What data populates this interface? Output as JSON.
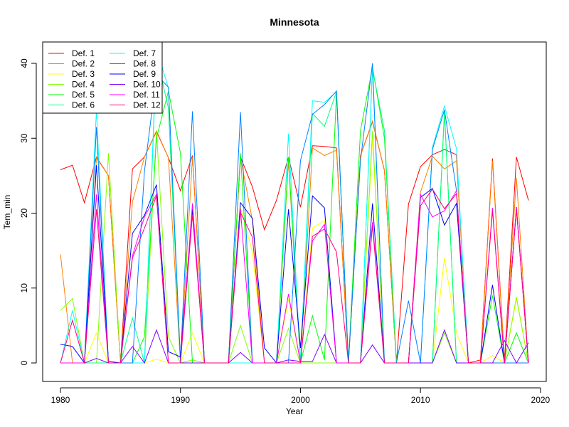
{
  "chart_data": {
    "type": "line",
    "title": "Minnesota",
    "xlabel": "Year",
    "ylabel": "Tem_min",
    "xlim": [
      1980,
      2020
    ],
    "ylim": [
      0,
      42
    ],
    "xticks": [
      1980,
      1990,
      2000,
      2010,
      2020
    ],
    "yticks": [
      0,
      10,
      20,
      30,
      40
    ],
    "legend_position": "top-left",
    "x": [
      1980,
      1981,
      1982,
      1983,
      1984,
      1985,
      1986,
      1987,
      1988,
      1989,
      1990,
      1991,
      1992,
      1993,
      1994,
      1995,
      1996,
      1997,
      1998,
      1999,
      2000,
      2001,
      2002,
      2003,
      2004,
      2005,
      2006,
      2007,
      2008,
      2009,
      2010,
      2011,
      2012,
      2013,
      2014,
      2015,
      2016,
      2017,
      2018,
      2019
    ],
    "series": [
      {
        "name": "Def. 1",
        "color": "#FF0000",
        "values": [
          25.8,
          26.4,
          21.4,
          27.5,
          25,
          0,
          25.9,
          27.5,
          30.9,
          27.4,
          23,
          27.7,
          0,
          0,
          0,
          27.5,
          23.5,
          17.8,
          21.7,
          27.5,
          20.8,
          29,
          28.9,
          28.7,
          0,
          27.7,
          32.2,
          25.7,
          0,
          21.2,
          26.2,
          27.8,
          28.5,
          27.8,
          0,
          0.4,
          27.3,
          0.3,
          27.5,
          21.7
        ]
      },
      {
        "name": "Def. 2",
        "color": "#FF8000",
        "values": [
          14.5,
          0,
          0,
          27.4,
          25,
          0,
          21.5,
          27.5,
          31,
          27.4,
          0,
          27.5,
          0,
          0,
          0,
          27.5,
          19,
          0,
          0,
          26.9,
          0,
          28.7,
          27.7,
          28.4,
          0,
          27.7,
          32.3,
          25.7,
          0,
          0,
          22.8,
          27.6,
          25.9,
          27,
          0,
          0,
          27,
          0,
          24.7,
          0
        ]
      },
      {
        "name": "Def. 3",
        "color": "#FFFF00",
        "values": [
          0,
          0,
          0,
          4,
          0,
          0,
          0,
          0,
          0.5,
          0,
          0,
          4,
          0,
          0,
          0,
          20.8,
          14.8,
          0,
          0,
          8.6,
          0,
          18,
          19,
          0,
          0,
          0,
          30,
          0,
          0,
          0,
          0,
          0,
          14,
          4,
          0,
          0,
          1,
          0,
          8.6,
          0
        ]
      },
      {
        "name": "Def. 4",
        "color": "#80FF00",
        "values": [
          7,
          8.6,
          0,
          0,
          28,
          0,
          0,
          0,
          31,
          3.5,
          0,
          0.4,
          0,
          0,
          0,
          5,
          0,
          0,
          0,
          4.6,
          0,
          0,
          0,
          0,
          0,
          0,
          31,
          0,
          0,
          0,
          0,
          0,
          4,
          0,
          0,
          0,
          0,
          0,
          8.8,
          0
        ]
      },
      {
        "name": "Def. 5",
        "color": "#00FF00",
        "values": [
          0,
          0,
          0,
          0,
          0,
          0,
          0,
          3.5,
          30,
          36.3,
          28,
          0,
          0,
          0,
          0,
          28,
          0,
          0,
          0,
          27.5,
          0,
          6.3,
          0.4,
          36,
          0,
          31,
          39.5,
          30,
          0,
          0,
          0,
          0,
          33.5,
          0,
          0,
          0,
          9,
          0,
          4,
          0
        ]
      },
      {
        "name": "Def. 6",
        "color": "#00FF80",
        "values": [
          0,
          0,
          0,
          0,
          0,
          0,
          6,
          0,
          41,
          34,
          0,
          0,
          0,
          0,
          0,
          0,
          0,
          0,
          0,
          0,
          0,
          33.3,
          31.6,
          36.2,
          0,
          0,
          39.3,
          31,
          0,
          0,
          0,
          0,
          33.6,
          0,
          0,
          0,
          0,
          0,
          0,
          0
        ]
      },
      {
        "name": "Def. 7",
        "color": "#00FFFF",
        "values": [
          0,
          7,
          0,
          33.8,
          0,
          0,
          0,
          0,
          42,
          36.7,
          0,
          0,
          0,
          0,
          0,
          0,
          0,
          0,
          0,
          30.6,
          0,
          35,
          34.8,
          36.2,
          0,
          0,
          39.6,
          0,
          0,
          0,
          0,
          28.8,
          34.3,
          28.6,
          0,
          0,
          0,
          0,
          0,
          0
        ]
      },
      {
        "name": "Def. 8",
        "color": "#0080FF",
        "values": [
          0,
          0,
          0,
          31.5,
          0,
          0,
          0,
          25.6,
          38.5,
          36.8,
          0.3,
          33.6,
          0,
          0,
          0,
          33.5,
          0,
          0,
          0,
          0,
          27,
          33.2,
          34.5,
          36.3,
          0,
          27,
          40,
          0,
          0,
          8.3,
          0,
          28.5,
          33.8,
          23,
          0,
          0,
          0,
          0,
          0,
          0
        ]
      },
      {
        "name": "Def. 9",
        "color": "#0000FF",
        "values": [
          2.5,
          2.2,
          0,
          26.4,
          0.2,
          0,
          17.3,
          19.7,
          23.8,
          1.5,
          0.8,
          20.5,
          0,
          0,
          0,
          21.4,
          19.3,
          2,
          0,
          20.5,
          2,
          22.3,
          20.7,
          0,
          0,
          0,
          21.3,
          0,
          0,
          0,
          22.1,
          23.3,
          18.4,
          21.3,
          0,
          0,
          10.4,
          0,
          20.8,
          0
        ]
      },
      {
        "name": "Def. 10",
        "color": "#8000FF",
        "values": [
          0,
          0,
          0,
          0.6,
          0,
          0,
          2.2,
          0,
          4.4,
          0,
          0,
          0,
          0,
          0,
          0,
          1.4,
          0,
          0,
          0,
          0.4,
          0.2,
          0.2,
          3.8,
          0,
          0,
          0,
          2.4,
          0,
          0,
          0,
          0,
          0,
          4.4,
          0,
          0,
          0,
          0,
          3,
          0,
          2.7
        ]
      },
      {
        "name": "Def. 11",
        "color": "#FF00FF",
        "values": [
          0,
          0,
          0,
          22.5,
          0,
          0,
          14.3,
          19.5,
          22.5,
          0,
          0,
          21.3,
          0,
          0,
          0,
          20.5,
          0,
          0,
          0,
          9.2,
          0,
          16.3,
          18.5,
          0,
          0,
          0,
          18.8,
          0,
          0,
          0,
          22.5,
          19.5,
          20.3,
          23,
          0,
          0,
          20.7,
          0,
          20.7,
          0
        ]
      },
      {
        "name": "Def. 12",
        "color": "#FF0080",
        "values": [
          0,
          5.7,
          0,
          20.5,
          0,
          0,
          14,
          18,
          22.3,
          0,
          0,
          19.8,
          0,
          0,
          0,
          20.1,
          16.8,
          0,
          0,
          0,
          0,
          16.9,
          17.9,
          14.8,
          0,
          0,
          18.3,
          0,
          0,
          0,
          21,
          23.2,
          20.6,
          22.6,
          0,
          0,
          20.3,
          0,
          20.5,
          0
        ]
      }
    ]
  }
}
